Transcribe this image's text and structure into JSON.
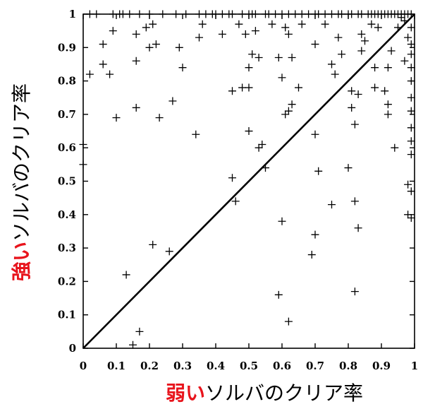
{
  "chart_data": {
    "type": "scatter",
    "xlabel_highlight": "弱い",
    "xlabel_rest": "ソルバのクリア率",
    "ylabel_highlight": "強い",
    "ylabel_rest": "ソルバのクリア率",
    "xlim": [
      0,
      1
    ],
    "ylim": [
      0,
      1
    ],
    "xticks": [
      "0",
      "0.1",
      "0.2",
      "0.3",
      "0.4",
      "0.5",
      "0.6",
      "0.7",
      "0.8",
      "0.9",
      "1"
    ],
    "yticks": [
      "0",
      "0.1",
      "0.2",
      "0.3",
      "0.4",
      "0.5",
      "0.6",
      "0.7",
      "0.8",
      "0.9",
      "1"
    ],
    "diagonal": [
      [
        0,
        0
      ],
      [
        1,
        1
      ]
    ],
    "grid": false,
    "points": [
      [
        0.15,
        0.01
      ],
      [
        0.17,
        0.05
      ],
      [
        0.13,
        0.22
      ],
      [
        0.21,
        0.31
      ],
      [
        0.26,
        0.29
      ],
      [
        0.0,
        0.61
      ],
      [
        0.0,
        0.55
      ],
      [
        0.02,
        0.82
      ],
      [
        0.06,
        0.85
      ],
      [
        0.06,
        0.91
      ],
      [
        0.08,
        0.82
      ],
      [
        0.09,
        0.95
      ],
      [
        0.1,
        0.69
      ],
      [
        0.16,
        0.72
      ],
      [
        0.16,
        0.86
      ],
      [
        0.16,
        0.94
      ],
      [
        0.19,
        0.96
      ],
      [
        0.2,
        0.9
      ],
      [
        0.21,
        0.97
      ],
      [
        0.22,
        0.91
      ],
      [
        0.23,
        0.69
      ],
      [
        0.27,
        0.74
      ],
      [
        0.29,
        0.9
      ],
      [
        0.3,
        0.84
      ],
      [
        0.34,
        0.64
      ],
      [
        0.35,
        0.93
      ],
      [
        0.36,
        0.97
      ],
      [
        0.42,
        0.94
      ],
      [
        0.45,
        0.77
      ],
      [
        0.45,
        0.51
      ],
      [
        0.46,
        0.44
      ],
      [
        0.47,
        0.97
      ],
      [
        0.48,
        0.78
      ],
      [
        0.49,
        0.94
      ],
      [
        0.5,
        0.78
      ],
      [
        0.5,
        0.65
      ],
      [
        0.5,
        0.84
      ],
      [
        0.51,
        0.88
      ],
      [
        0.52,
        0.95
      ],
      [
        0.53,
        0.87
      ],
      [
        0.53,
        0.6
      ],
      [
        0.54,
        0.61
      ],
      [
        0.55,
        0.54
      ],
      [
        0.57,
        0.97
      ],
      [
        0.59,
        0.87
      ],
      [
        0.59,
        0.16
      ],
      [
        0.6,
        0.38
      ],
      [
        0.6,
        0.81
      ],
      [
        0.61,
        0.7
      ],
      [
        0.61,
        0.96
      ],
      [
        0.62,
        0.71
      ],
      [
        0.62,
        0.94
      ],
      [
        0.62,
        0.08
      ],
      [
        0.63,
        0.87
      ],
      [
        0.63,
        0.73
      ],
      [
        0.65,
        0.78
      ],
      [
        0.66,
        0.97
      ],
      [
        0.69,
        0.28
      ],
      [
        0.7,
        0.34
      ],
      [
        0.7,
        0.64
      ],
      [
        0.7,
        0.91
      ],
      [
        0.71,
        0.53
      ],
      [
        0.73,
        0.97
      ],
      [
        0.75,
        0.85
      ],
      [
        0.75,
        0.43
      ],
      [
        0.76,
        0.82
      ],
      [
        0.77,
        0.93
      ],
      [
        0.78,
        0.88
      ],
      [
        0.8,
        0.54
      ],
      [
        0.81,
        0.72
      ],
      [
        0.81,
        0.77
      ],
      [
        0.82,
        0.67
      ],
      [
        0.82,
        0.44
      ],
      [
        0.82,
        0.17
      ],
      [
        0.83,
        0.76
      ],
      [
        0.83,
        0.36
      ],
      [
        0.84,
        0.89
      ],
      [
        0.84,
        0.94
      ],
      [
        0.85,
        0.92
      ],
      [
        0.87,
        0.97
      ],
      [
        0.88,
        0.84
      ],
      [
        0.88,
        0.78
      ],
      [
        0.89,
        0.96
      ],
      [
        0.91,
        0.77
      ],
      [
        0.92,
        0.84
      ],
      [
        0.92,
        0.73
      ],
      [
        0.92,
        0.7
      ],
      [
        0.93,
        0.89
      ],
      [
        0.94,
        0.6
      ],
      [
        0.95,
        0.96
      ],
      [
        0.96,
        0.99
      ],
      [
        0.97,
        0.86
      ],
      [
        0.98,
        0.49
      ],
      [
        0.98,
        0.4
      ],
      [
        0.99,
        0.47
      ],
      [
        0.99,
        0.39
      ],
      [
        0.98,
        0.93
      ],
      [
        0.99,
        0.8
      ],
      [
        0.99,
        0.66
      ],
      [
        0.99,
        0.58
      ],
      [
        0.99,
        0.62
      ],
      [
        0.99,
        0.71
      ],
      [
        0.99,
        0.75
      ],
      [
        0.99,
        0.84
      ],
      [
        0.99,
        0.88
      ],
      [
        0.99,
        0.91
      ],
      [
        0.97,
        0.98
      ],
      [
        0.99,
        0.96
      ]
    ],
    "top_edge_points_x": [
      0.02,
      0.04,
      0.09,
      0.11,
      0.12,
      0.14,
      0.17,
      0.2,
      0.24,
      0.28,
      0.31,
      0.35,
      0.37,
      0.39,
      0.4,
      0.42,
      0.44,
      0.45,
      0.48,
      0.5,
      0.51,
      0.52,
      0.55,
      0.56,
      0.58,
      0.6,
      0.62,
      0.64,
      0.66,
      0.68,
      0.7,
      0.71,
      0.73,
      0.75,
      0.77,
      0.78,
      0.8,
      0.81,
      0.83,
      0.84,
      0.86,
      0.87,
      0.88,
      0.89,
      0.9,
      0.91,
      0.92,
      0.93,
      0.94,
      0.95,
      0.96,
      0.97,
      0.98,
      0.99
    ]
  }
}
